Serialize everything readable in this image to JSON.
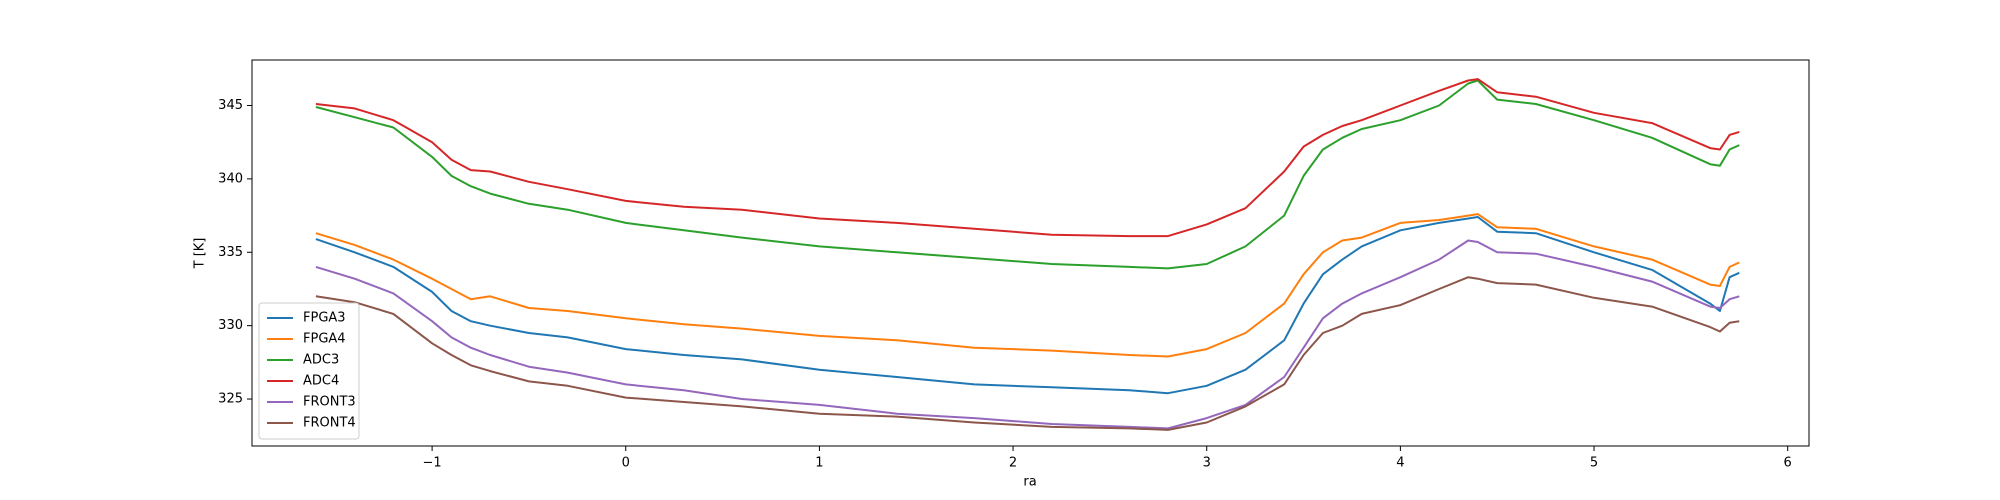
{
  "chart_data": {
    "type": "line",
    "xlabel": "ra",
    "ylabel": "T [K]",
    "x": [
      -1.6,
      -1.4,
      -1.2,
      -1.0,
      -0.9,
      -0.8,
      -0.7,
      -0.5,
      -0.3,
      0,
      0.3,
      0.6,
      1.0,
      1.4,
      1.8,
      2.2,
      2.6,
      2.8,
      3.0,
      3.2,
      3.4,
      3.5,
      3.6,
      3.7,
      3.8,
      4.0,
      4.2,
      4.35,
      4.4,
      4.5,
      4.7,
      5.0,
      5.3,
      5.6,
      5.65,
      5.7,
      5.75
    ],
    "series": [
      {
        "name": "FPGA3",
        "color": "#1f77b4",
        "values": [
          335.9,
          335.0,
          334.0,
          332.3,
          331.0,
          330.3,
          330.0,
          329.5,
          329.2,
          328.4,
          328.0,
          327.7,
          327.0,
          326.5,
          326.0,
          325.8,
          325.6,
          325.4,
          325.9,
          327.0,
          329.0,
          331.5,
          333.5,
          334.5,
          335.4,
          336.5,
          337.0,
          337.3,
          337.4,
          336.4,
          336.3,
          335.0,
          333.8,
          331.5,
          331.0,
          333.3,
          333.6
        ]
      },
      {
        "name": "FPGA4",
        "color": "#ff7f0e",
        "values": [
          336.3,
          335.5,
          334.5,
          333.2,
          332.5,
          331.8,
          332.0,
          331.2,
          331.0,
          330.5,
          330.1,
          329.8,
          329.3,
          329.0,
          328.5,
          328.3,
          328.0,
          327.9,
          328.4,
          329.5,
          331.5,
          333.5,
          335.0,
          335.8,
          336.0,
          337.0,
          337.2,
          337.5,
          337.6,
          336.7,
          336.6,
          335.4,
          334.5,
          332.8,
          332.7,
          334.0,
          334.3
        ]
      },
      {
        "name": "ADC3",
        "color": "#2ca02c",
        "values": [
          344.9,
          344.2,
          343.5,
          341.5,
          340.2,
          339.5,
          339.0,
          338.3,
          337.9,
          337.0,
          336.5,
          336.0,
          335.4,
          335.0,
          334.6,
          334.2,
          334.0,
          333.9,
          334.2,
          335.4,
          337.5,
          340.2,
          342.0,
          342.8,
          343.4,
          344.0,
          345.0,
          346.5,
          346.7,
          345.4,
          345.1,
          344.0,
          342.8,
          341.0,
          340.9,
          342.0,
          342.3
        ]
      },
      {
        "name": "ADC4",
        "color": "#d62728",
        "values": [
          345.1,
          344.8,
          344.0,
          342.5,
          341.3,
          340.6,
          340.5,
          339.8,
          339.3,
          338.5,
          338.1,
          337.9,
          337.3,
          337.0,
          336.6,
          336.2,
          336.1,
          336.1,
          336.9,
          338.0,
          340.5,
          342.2,
          343.0,
          343.6,
          344.0,
          345.0,
          346.0,
          346.7,
          346.8,
          345.9,
          345.6,
          344.5,
          343.8,
          342.1,
          342.0,
          343.0,
          343.2
        ]
      },
      {
        "name": "FRONT3",
        "color": "#9467bd",
        "values": [
          334.0,
          333.2,
          332.2,
          330.3,
          329.2,
          328.5,
          328.0,
          327.2,
          326.8,
          326.0,
          325.6,
          325.0,
          324.6,
          324.0,
          323.7,
          323.3,
          323.1,
          323.0,
          323.7,
          324.6,
          326.5,
          328.5,
          330.5,
          331.5,
          332.2,
          333.3,
          334.5,
          335.8,
          335.7,
          335.0,
          334.9,
          334.0,
          333.0,
          331.3,
          331.2,
          331.8,
          332.0
        ]
      },
      {
        "name": "FRONT4",
        "color": "#8c564b",
        "values": [
          332.0,
          331.6,
          330.8,
          328.8,
          328.0,
          327.3,
          326.9,
          326.2,
          325.9,
          325.1,
          324.8,
          324.5,
          324.0,
          323.8,
          323.4,
          323.1,
          323.0,
          322.9,
          323.4,
          324.5,
          326.0,
          328.0,
          329.5,
          330.0,
          330.8,
          331.4,
          332.5,
          333.3,
          333.2,
          332.9,
          332.8,
          331.9,
          331.3,
          329.9,
          329.6,
          330.2,
          330.3
        ]
      }
    ],
    "xlim": [
      -1.93,
      6.11
    ],
    "xticks": [
      {
        "value": -1,
        "label": "−1"
      },
      0,
      1,
      2,
      3,
      4,
      5,
      6
    ],
    "ylim": [
      321.8,
      348.1
    ],
    "yticks": [
      325,
      330,
      335,
      340,
      345
    ],
    "legend": "lower left"
  }
}
